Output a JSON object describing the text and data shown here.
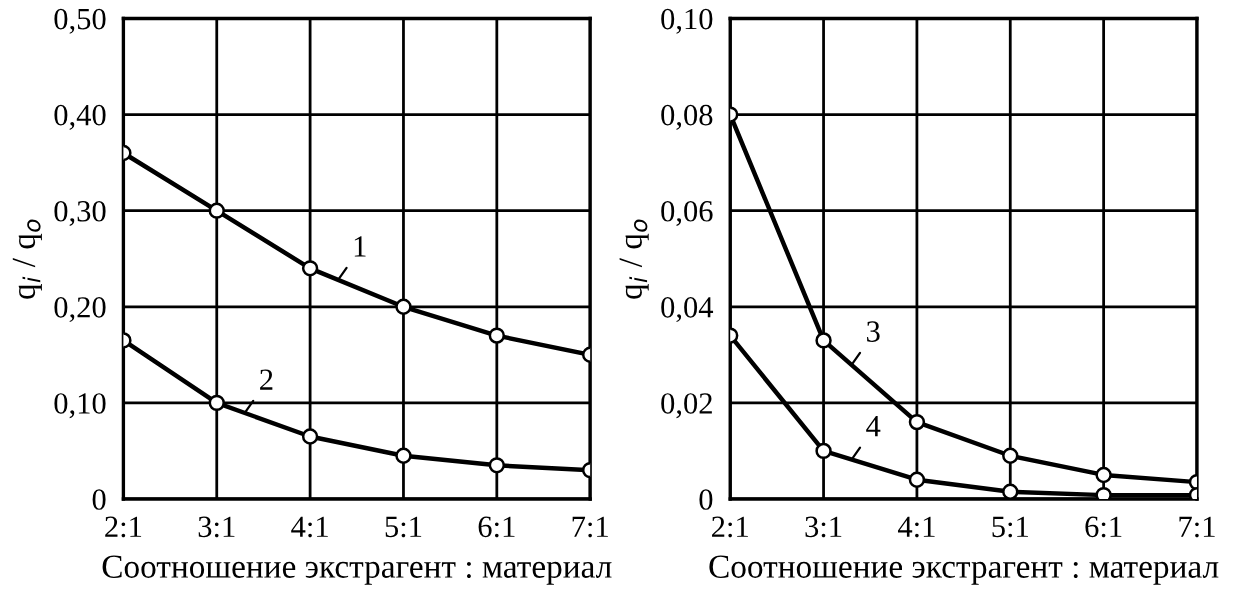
{
  "chart_data": [
    {
      "type": "line",
      "xlabel": "Соотношение экстрагент : материал",
      "ylabel": "q$_{i}$ / q$_{o}$",
      "categories": [
        "2:1",
        "3:1",
        "4:1",
        "5:1",
        "6:1",
        "7:1"
      ],
      "series": [
        {
          "name": "1",
          "color": "#000000",
          "values": [
            0.36,
            0.3,
            0.24,
            0.2,
            0.17,
            0.15
          ]
        },
        {
          "name": "2",
          "color": "#000000",
          "values": [
            0.165,
            0.1,
            0.065,
            0.045,
            0.035,
            0.03
          ]
        }
      ],
      "ylim": [
        0,
        0.5
      ],
      "yticks": [
        0,
        {
          "value": 0.1,
          "label": "0,10"
        },
        {
          "value": 0.2,
          "label": "0,20"
        },
        {
          "value": 0.3,
          "label": "0,30"
        },
        {
          "value": 0.4,
          "label": "0,40"
        },
        {
          "value": 0.5,
          "label": "0,50"
        }
      ],
      "grid": true,
      "marker": "circle",
      "line_style": "solid"
    },
    {
      "type": "line",
      "xlabel": "Соотношение экстрагент : материал",
      "ylabel": "q$_{i}$ / q$_{o}$",
      "categories": [
        "2:1",
        "3:1",
        "4:1",
        "5:1",
        "6:1",
        "7:1"
      ],
      "series": [
        {
          "name": "3",
          "color": "#000000",
          "values": [
            0.08,
            0.033,
            0.016,
            0.009,
            0.005,
            0.0035
          ]
        },
        {
          "name": "4",
          "color": "#000000",
          "values": [
            0.034,
            0.01,
            0.004,
            0.0015,
            0.0008,
            0.0008
          ]
        }
      ],
      "ylim": [
        0,
        0.1
      ],
      "yticks": [
        0,
        {
          "value": 0.02,
          "label": "0,02"
        },
        {
          "value": 0.04,
          "label": "0,04"
        },
        {
          "value": 0.06,
          "label": "0,06"
        },
        {
          "value": 0.08,
          "label": "0,08"
        },
        {
          "value": 0.1,
          "label": "0,10"
        }
      ],
      "grid": true,
      "marker": "circle",
      "line_style": "solid"
    }
  ]
}
